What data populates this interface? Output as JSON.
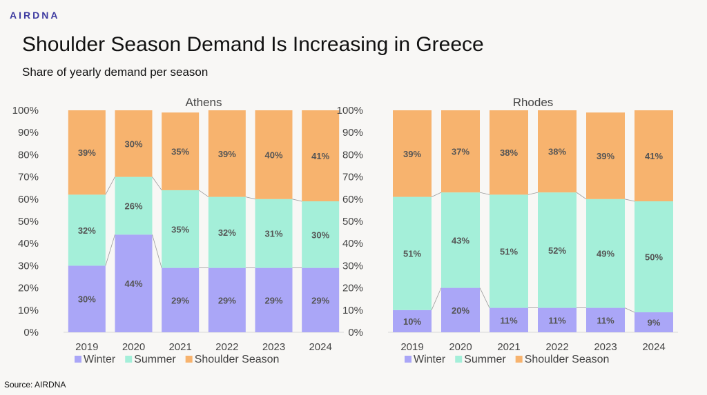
{
  "brand": {
    "logo_text": "AIRDNA"
  },
  "header": {
    "title": "Shoulder Season Demand Is Increasing in Greece",
    "subtitle": "Share of yearly demand per season"
  },
  "footer": {
    "source": "Source: AIRDNA"
  },
  "colors": {
    "winter": "#aaa6f7",
    "summer": "#a4efd9",
    "shoulder": "#f7b36e",
    "logo": "#3d3aa0"
  },
  "chart_data": [
    {
      "type": "bar",
      "stacked": true,
      "title": "Athens",
      "categories": [
        "2019",
        "2020",
        "2021",
        "2022",
        "2023",
        "2024"
      ],
      "y_ticks": [
        "0%",
        "10%",
        "20%",
        "30%",
        "40%",
        "50%",
        "60%",
        "70%",
        "80%",
        "90%",
        "100%"
      ],
      "ylim": [
        0,
        100
      ],
      "grid": false,
      "legend": "bottom",
      "series_lines": true,
      "series": [
        {
          "name": "Winter",
          "values": [
            30,
            44,
            29,
            29,
            29,
            29
          ],
          "labels": [
            "30%",
            "44%",
            "29%",
            "29%",
            "29%",
            "29%"
          ]
        },
        {
          "name": "Summer",
          "values": [
            32,
            26,
            35,
            32,
            31,
            30
          ],
          "labels": [
            "32%",
            "26%",
            "35%",
            "32%",
            "31%",
            "30%"
          ]
        },
        {
          "name": "Shoulder Season",
          "values": [
            39,
            30,
            35,
            39,
            40,
            41
          ],
          "labels": [
            "39%",
            "30%",
            "35%",
            "39%",
            "40%",
            "41%"
          ]
        }
      ]
    },
    {
      "type": "bar",
      "stacked": true,
      "title": "Rhodes",
      "categories": [
        "2019",
        "2020",
        "2021",
        "2022",
        "2023",
        "2024"
      ],
      "y_ticks": [
        "0%",
        "10%",
        "20%",
        "30%",
        "40%",
        "50%",
        "60%",
        "70%",
        "80%",
        "90%",
        "100%"
      ],
      "ylim": [
        0,
        100
      ],
      "grid": false,
      "legend": "bottom",
      "series_lines": true,
      "series": [
        {
          "name": "Winter",
          "values": [
            10,
            20,
            11,
            11,
            11,
            9
          ],
          "labels": [
            "10%",
            "20%",
            "11%",
            "11%",
            "11%",
            "9%"
          ]
        },
        {
          "name": "Summer",
          "values": [
            51,
            43,
            51,
            52,
            49,
            50
          ],
          "labels": [
            "51%",
            "43%",
            "51%",
            "52%",
            "49%",
            "50%"
          ]
        },
        {
          "name": "Shoulder Season",
          "values": [
            39,
            37,
            38,
            38,
            39,
            41
          ],
          "labels": [
            "39%",
            "37%",
            "38%",
            "38%",
            "39%",
            "41%"
          ]
        }
      ]
    }
  ]
}
